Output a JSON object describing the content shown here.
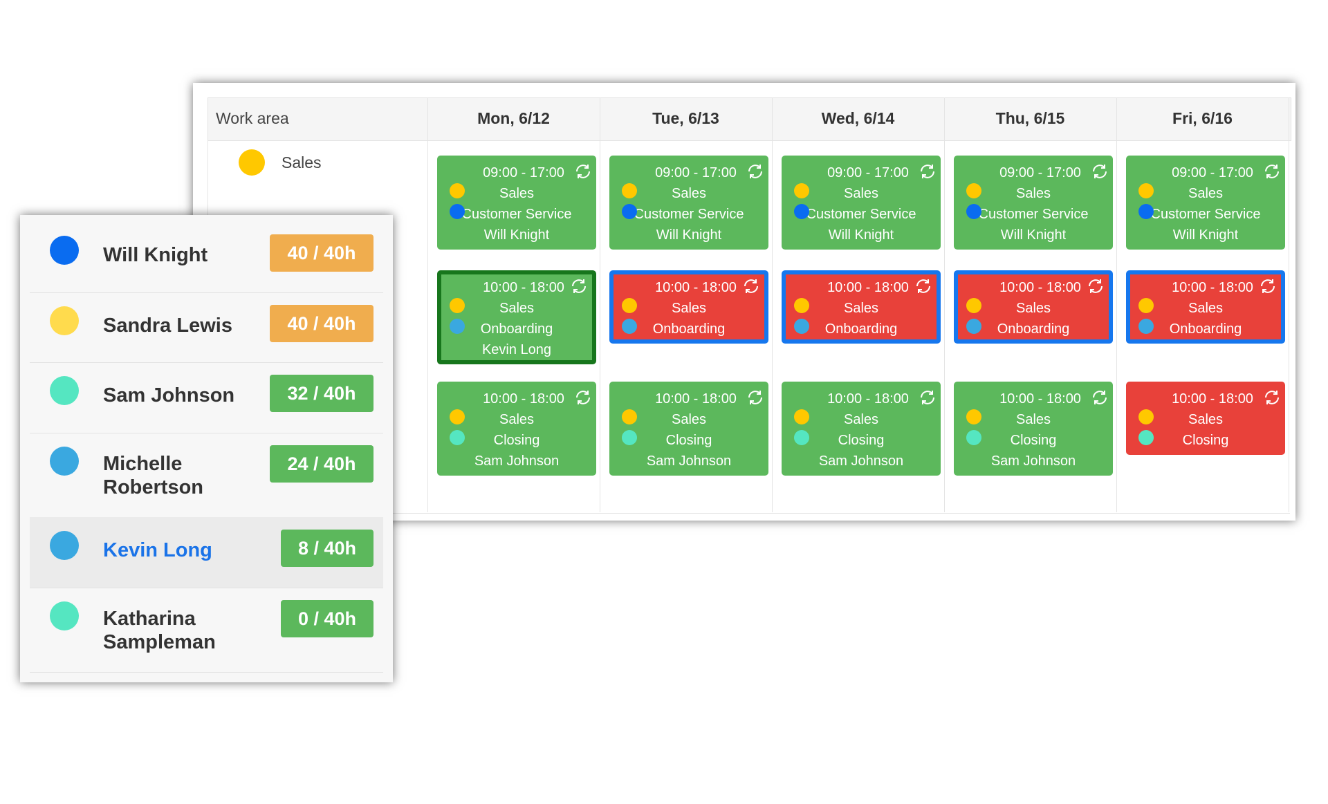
{
  "header": {
    "work_area_label": "Work area",
    "days": [
      "Mon, 6/12",
      "Tue, 6/13",
      "Wed, 6/14",
      "Thu, 6/15",
      "Fri, 6/16"
    ]
  },
  "work_areas": [
    {
      "name": "Sales",
      "color": "#ffc800"
    }
  ],
  "shifts": [
    [
      {
        "time": "09:00 - 17:00",
        "area": "Sales",
        "role": "Customer Service",
        "employee": "Will Knight",
        "color": "#5cb85c",
        "role_color": "#0a6cf0"
      },
      {
        "time": "09:00 - 17:00",
        "area": "Sales",
        "role": "Customer Service",
        "employee": "Will Knight",
        "color": "#5cb85c",
        "role_color": "#0a6cf0"
      },
      {
        "time": "09:00 - 17:00",
        "area": "Sales",
        "role": "Customer Service",
        "employee": "Will Knight",
        "color": "#5cb85c",
        "role_color": "#0a6cf0"
      },
      {
        "time": "09:00 - 17:00",
        "area": "Sales",
        "role": "Customer Service",
        "employee": "Will Knight",
        "color": "#5cb85c",
        "role_color": "#0a6cf0"
      },
      {
        "time": "09:00 - 17:00",
        "area": "Sales",
        "role": "Customer Service",
        "employee": "Will Knight",
        "color": "#5cb85c",
        "role_color": "#0a6cf0"
      }
    ],
    [
      {
        "time": "10:00 - 18:00",
        "area": "Sales",
        "role": "Onboarding",
        "employee": "Kevin Long",
        "color": "#5cb85c",
        "role_color": "#3aa8e0",
        "border": "#17761c"
      },
      {
        "time": "10:00 - 18:00",
        "area": "Sales",
        "role": "Onboarding",
        "color": "#e8413a",
        "role_color": "#3aa8e0",
        "border": "#1677ee"
      },
      {
        "time": "10:00 - 18:00",
        "area": "Sales",
        "role": "Onboarding",
        "color": "#e8413a",
        "role_color": "#3aa8e0",
        "border": "#1677ee"
      },
      {
        "time": "10:00 - 18:00",
        "area": "Sales",
        "role": "Onboarding",
        "color": "#e8413a",
        "role_color": "#3aa8e0",
        "border": "#1677ee"
      },
      {
        "time": "10:00 - 18:00",
        "area": "Sales",
        "role": "Onboarding",
        "color": "#e8413a",
        "role_color": "#3aa8e0",
        "border": "#1677ee"
      }
    ],
    [
      {
        "time": "10:00 - 18:00",
        "area": "Sales",
        "role": "Closing",
        "employee": "Sam Johnson",
        "color": "#5cb85c",
        "role_color": "#55e6c1"
      },
      {
        "time": "10:00 - 18:00",
        "area": "Sales",
        "role": "Closing",
        "employee": "Sam Johnson",
        "color": "#5cb85c",
        "role_color": "#55e6c1"
      },
      {
        "time": "10:00 - 18:00",
        "area": "Sales",
        "role": "Closing",
        "employee": "Sam Johnson",
        "color": "#5cb85c",
        "role_color": "#55e6c1"
      },
      {
        "time": "10:00 - 18:00",
        "area": "Sales",
        "role": "Closing",
        "employee": "Sam Johnson",
        "color": "#5cb85c",
        "role_color": "#55e6c1"
      },
      {
        "time": "10:00 - 18:00",
        "area": "Sales",
        "role": "Closing",
        "color": "#e8413a",
        "role_color": "#55e6c1"
      }
    ]
  ],
  "employees": [
    {
      "name": "Will Knight",
      "hours": "40 / 40h",
      "color": "#0a6cf0",
      "badge_color": "#f0ad4e"
    },
    {
      "name": "Sandra Lewis",
      "hours": "40 / 40h",
      "color": "#ffdb4d",
      "badge_color": "#f0ad4e"
    },
    {
      "name": "Sam Johnson",
      "hours": "32 / 40h",
      "color": "#55e6c1",
      "badge_color": "#5cb85c"
    },
    {
      "name": "Michelle Robertson",
      "hours": "24 / 40h",
      "color": "#3aa8e0",
      "badge_color": "#5cb85c"
    },
    {
      "name": "Kevin Long",
      "hours": "8 / 40h",
      "color": "#3aa8e0",
      "badge_color": "#5cb85c",
      "selected": true
    },
    {
      "name": "Katharina Sampleman",
      "hours": "0 / 40h",
      "color": "#55e6c1",
      "badge_color": "#5cb85c"
    }
  ]
}
